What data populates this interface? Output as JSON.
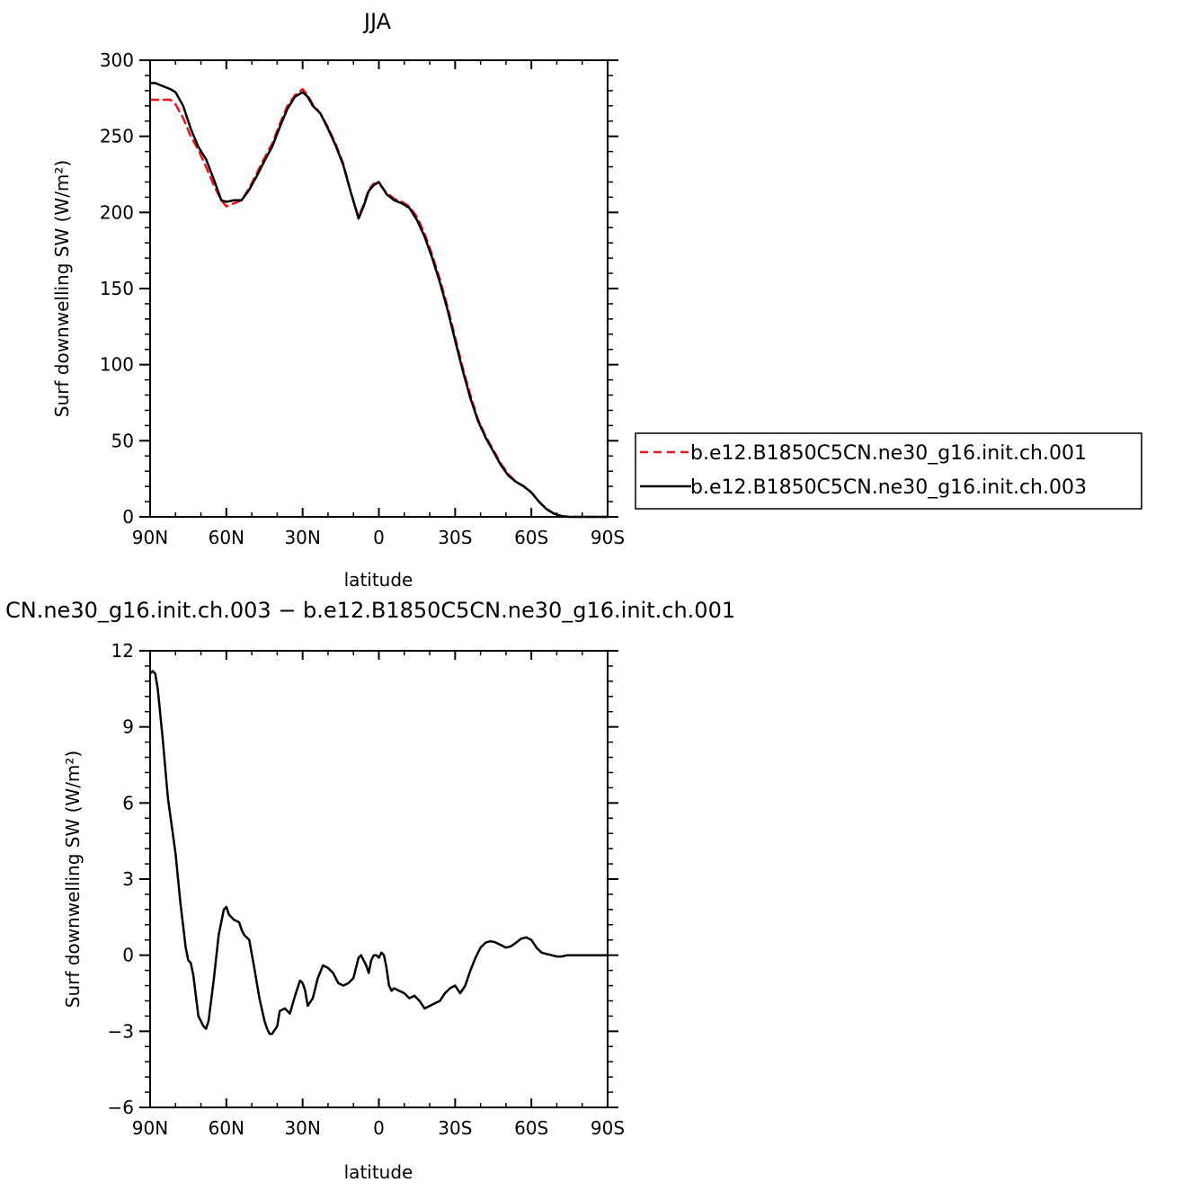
{
  "chart_data": [
    {
      "type": "line",
      "title": "JJA",
      "xlabel": "latitude",
      "ylabel": "Surf downwelling SW (W/m²)",
      "xlim": [
        90,
        -90
      ],
      "ylim": [
        0,
        300
      ],
      "x_ticks": [
        90,
        60,
        30,
        0,
        -30,
        -60,
        -90
      ],
      "x_tick_labels": [
        "90N",
        "60N",
        "30N",
        "0",
        "30S",
        "60S",
        "90S"
      ],
      "y_ticks": [
        0,
        50,
        100,
        150,
        200,
        250,
        300
      ],
      "y_tick_labels": [
        "0",
        "50",
        "100",
        "150",
        "200",
        "250",
        "300"
      ],
      "grid": false,
      "legend_position": "outside-right",
      "series": [
        {
          "name": "b.e12.B1850C5CN.ne30_g16.init.ch.001",
          "color": "#e8141c",
          "dash": "dashed",
          "x": [
            90,
            88,
            85,
            82,
            80,
            77,
            74,
            71,
            68,
            65,
            62,
            60,
            57,
            54,
            51,
            48,
            45,
            42,
            39,
            36,
            33,
            30,
            28,
            26,
            23,
            20,
            17,
            14,
            11,
            8,
            6,
            4,
            2,
            0,
            -3,
            -6,
            -9,
            -12,
            -15,
            -18,
            -21,
            -24,
            -27,
            -30,
            -33,
            -36,
            -39,
            -42,
            -45,
            -48,
            -51,
            -54,
            -57,
            -60,
            -63,
            -66,
            -69,
            -72,
            -75,
            -78,
            -81,
            -84,
            -87,
            -90
          ],
          "y": [
            274,
            274,
            274,
            274,
            271,
            262,
            250,
            241,
            230,
            218,
            208,
            204,
            206,
            208,
            216,
            226,
            236,
            245,
            258,
            270,
            277,
            281,
            277,
            271,
            265,
            256,
            245,
            232,
            213,
            197,
            205,
            215,
            219,
            219,
            213,
            209,
            207,
            204,
            197,
            186,
            172,
            156,
            138,
            118,
            98,
            80,
            64,
            53,
            44,
            35,
            28,
            23,
            20,
            16,
            10,
            5,
            2,
            0.5,
            0,
            0,
            0,
            0,
            0,
            0
          ]
        },
        {
          "name": "b.e12.B1850C5CN.ne30_g16.init.ch.003",
          "color": "#000000",
          "dash": "solid",
          "x": [
            90,
            88,
            85,
            82,
            80,
            77,
            74,
            71,
            68,
            65,
            62,
            60,
            57,
            54,
            51,
            48,
            45,
            42,
            39,
            36,
            33,
            30,
            28,
            26,
            23,
            20,
            17,
            14,
            11,
            8,
            6,
            4,
            2,
            0,
            -3,
            -6,
            -9,
            -12,
            -15,
            -18,
            -21,
            -24,
            -27,
            -30,
            -33,
            -36,
            -39,
            -42,
            -45,
            -48,
            -51,
            -54,
            -57,
            -60,
            -63,
            -66,
            -69,
            -72,
            -75,
            -78,
            -81,
            -84,
            -87,
            -90
          ],
          "y": [
            285,
            285,
            283,
            281,
            279,
            270,
            255,
            243,
            235,
            222,
            208,
            207,
            208,
            208,
            215,
            224,
            234,
            243,
            256,
            268,
            276,
            279,
            276,
            270,
            265,
            255,
            244,
            231,
            213,
            196,
            204,
            214,
            218,
            220,
            212,
            208,
            206,
            203,
            195,
            184,
            170,
            154,
            136,
            116,
            96,
            78,
            63,
            52,
            43,
            34,
            27,
            23,
            20,
            16,
            10,
            5,
            2,
            0.5,
            0,
            0,
            0,
            0,
            0,
            0
          ]
        }
      ]
    },
    {
      "type": "line",
      "title": "CN.ne30_g16.init.ch.003 − b.e12.B1850C5CN.ne30_g16.init.ch.001",
      "xlabel": "latitude",
      "ylabel": "Surf downwelling SW (W/m²)",
      "xlim": [
        90,
        -90
      ],
      "ylim": [
        -6,
        12
      ],
      "x_ticks": [
        90,
        60,
        30,
        0,
        -30,
        -60,
        -90
      ],
      "x_tick_labels": [
        "90N",
        "60N",
        "30N",
        "0",
        "30S",
        "60S",
        "90S"
      ],
      "y_ticks": [
        -6,
        -3,
        0,
        3,
        6,
        9,
        12
      ],
      "y_tick_labels": [
        "−6",
        "−3",
        "0",
        "3",
        "6",
        "9",
        "12"
      ],
      "grid": false,
      "series": [
        {
          "color": "#000000",
          "dash": "solid",
          "x": [
            90,
            89,
            88,
            87,
            85,
            83,
            80,
            78,
            76,
            75,
            74,
            73,
            71,
            69,
            68,
            67,
            65,
            63,
            61,
            60,
            59,
            57,
            55,
            54,
            53,
            51,
            49,
            47,
            45,
            44,
            43,
            42,
            40,
            39,
            37,
            35,
            33,
            31,
            30,
            29,
            28,
            26,
            24,
            22,
            20,
            18,
            16,
            14,
            12,
            10,
            8,
            7,
            6,
            5,
            4,
            3,
            2,
            1,
            0,
            -1,
            -2,
            -3,
            -4,
            -5,
            -6,
            -8,
            -10,
            -12,
            -14,
            -16,
            -18,
            -20,
            -22,
            -24,
            -26,
            -28,
            -30,
            -32,
            -34,
            -36,
            -38,
            -40,
            -42,
            -44,
            -46,
            -48,
            -50,
            -52,
            -54,
            -56,
            -58,
            -60,
            -62,
            -64,
            -66,
            -68,
            -70,
            -72,
            -74,
            -76,
            -80,
            -85,
            -90
          ],
          "y": [
            11.1,
            11.2,
            11.1,
            10.5,
            8.5,
            6.2,
            4.0,
            2.0,
            0.3,
            -0.2,
            -0.3,
            -0.8,
            -2.4,
            -2.8,
            -2.9,
            -2.6,
            -1.0,
            0.8,
            1.8,
            1.9,
            1.6,
            1.4,
            1.3,
            1.0,
            0.8,
            0.6,
            -0.5,
            -1.7,
            -2.6,
            -2.9,
            -3.1,
            -3.1,
            -2.8,
            -2.2,
            -2.1,
            -2.3,
            -1.6,
            -1.0,
            -1.1,
            -1.4,
            -2.0,
            -1.7,
            -0.9,
            -0.4,
            -0.5,
            -0.7,
            -1.1,
            -1.2,
            -1.1,
            -0.9,
            -0.1,
            0.0,
            -0.2,
            -0.4,
            -0.7,
            -0.2,
            0.0,
            0.0,
            -0.1,
            0.1,
            0.0,
            -0.5,
            -1.2,
            -1.4,
            -1.3,
            -1.4,
            -1.5,
            -1.7,
            -1.6,
            -1.8,
            -2.1,
            -2.0,
            -1.9,
            -1.8,
            -1.5,
            -1.3,
            -1.2,
            -1.5,
            -1.2,
            -0.6,
            -0.1,
            0.3,
            0.5,
            0.55,
            0.5,
            0.4,
            0.3,
            0.35,
            0.5,
            0.65,
            0.7,
            0.6,
            0.3,
            0.1,
            0.05,
            0.0,
            -0.05,
            -0.05,
            0.0,
            0.0,
            0.0,
            0.0,
            0.0
          ]
        }
      ]
    }
  ]
}
